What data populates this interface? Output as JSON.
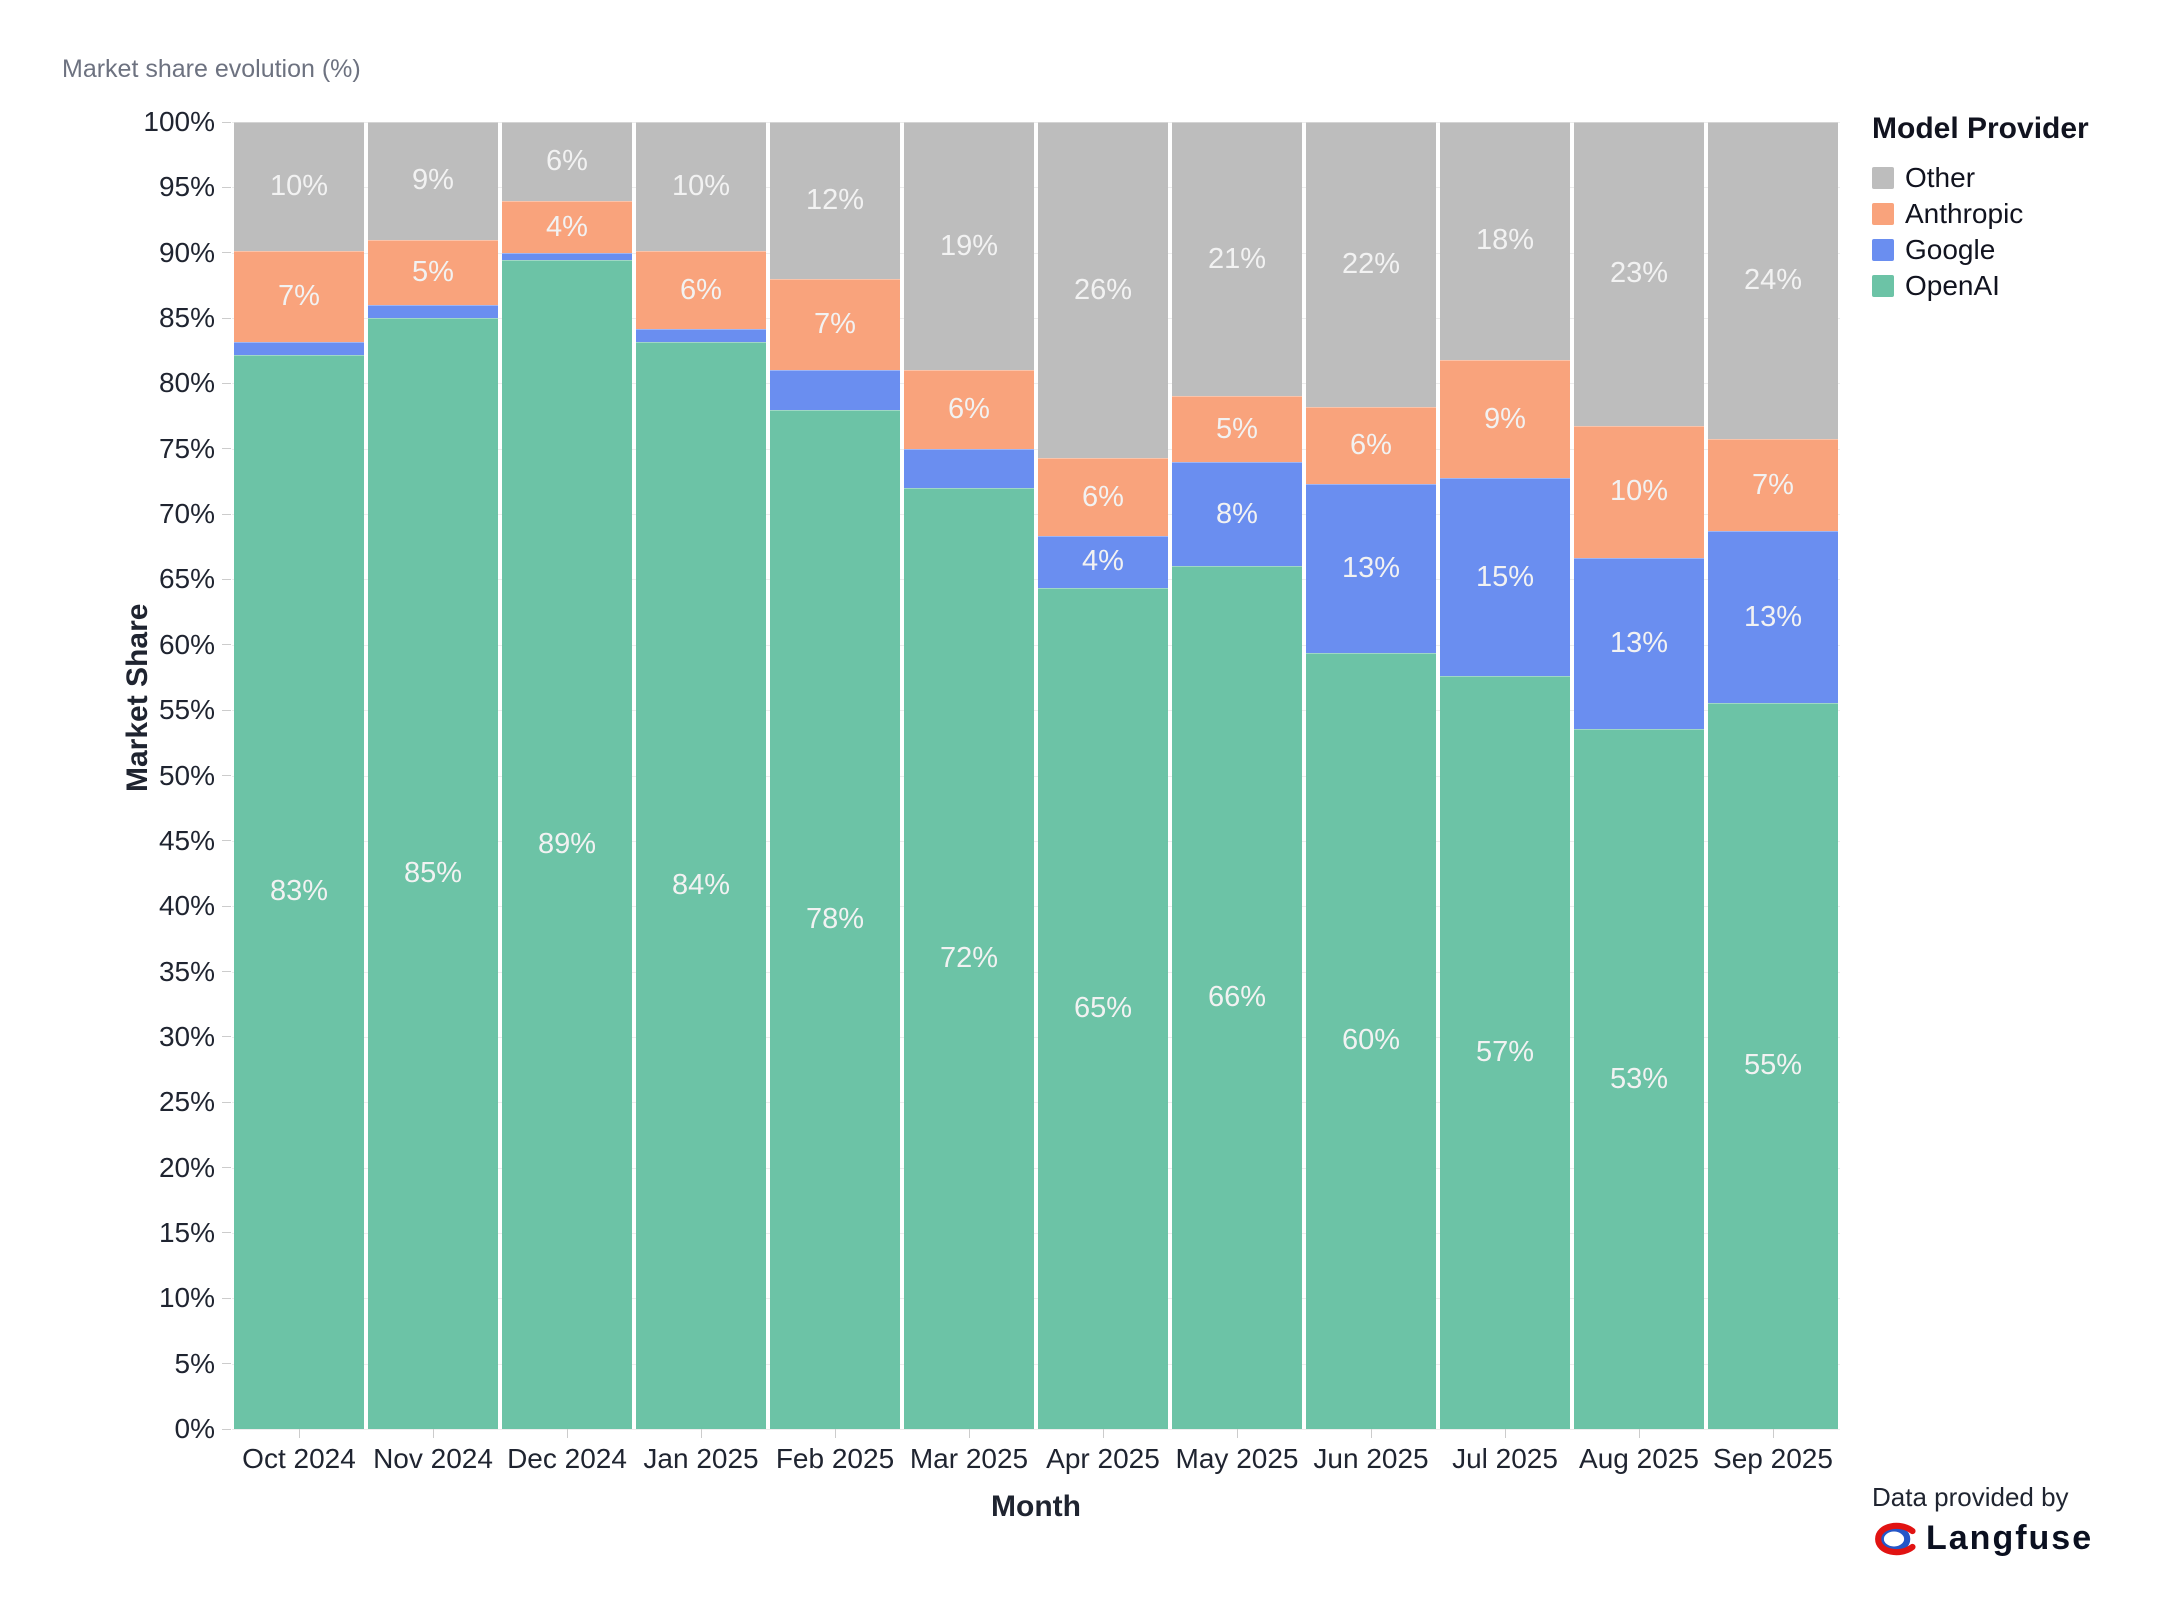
{
  "title": "Market share evolution (%)",
  "y_axis": {
    "label": "Market Share",
    "tick_values": [
      0,
      5,
      10,
      15,
      20,
      25,
      30,
      35,
      40,
      45,
      50,
      55,
      60,
      65,
      70,
      75,
      80,
      85,
      90,
      95,
      100
    ],
    "tick_suffix": "%"
  },
  "x_axis": {
    "label": "Month"
  },
  "legend": {
    "title": "Model Provider",
    "items": [
      {
        "label": "Other",
        "color": "#bdbdbd"
      },
      {
        "label": "Anthropic",
        "color": "#f9a37c"
      },
      {
        "label": "Google",
        "color": "#6a8ef0"
      },
      {
        "label": "OpenAI",
        "color": "#6cc3a6"
      }
    ]
  },
  "footer": {
    "provided_by": "Data provided by",
    "brand": "Langfuse",
    "logo_icon": "langfuse-knot-logo",
    "logo_colors": {
      "blue": "#2456c8",
      "red": "#e11312"
    }
  },
  "chart_data": {
    "type": "bar",
    "stacked": true,
    "title": "Market share evolution (%)",
    "xlabel": "Month",
    "ylabel": "Market Share",
    "ylim": [
      0,
      100
    ],
    "ytick_step": 5,
    "grid": true,
    "legend_position": "right",
    "stack_order_top_to_bottom": [
      "Other",
      "Anthropic",
      "Google",
      "OpenAI"
    ],
    "categories": [
      "Oct 2024",
      "Nov 2024",
      "Dec 2024",
      "Jan 2025",
      "Feb 2025",
      "Mar 2025",
      "Apr 2025",
      "May 2025",
      "Jun 2025",
      "Jul 2025",
      "Aug 2025",
      "Sep 2025"
    ],
    "series": [
      {
        "name": "OpenAI",
        "color": "#6cc3a6",
        "values": [
          83,
          85,
          89,
          84,
          78,
          72,
          65,
          66,
          60,
          57,
          53,
          55
        ],
        "labels": [
          "83%",
          "85%",
          "89%",
          "84%",
          "78%",
          "72%",
          "65%",
          "66%",
          "60%",
          "57%",
          "53%",
          "55%"
        ]
      },
      {
        "name": "Google",
        "color": "#6a8ef0",
        "values": [
          1,
          1,
          0.5,
          1,
          3,
          3,
          4,
          8,
          13,
          15,
          13,
          13
        ],
        "labels": [
          "",
          "",
          "",
          "",
          "",
          "",
          "4%",
          "8%",
          "13%",
          "15%",
          "13%",
          "13%"
        ]
      },
      {
        "name": "Anthropic",
        "color": "#f9a37c",
        "values": [
          7,
          5,
          4,
          6,
          7,
          6,
          6,
          5,
          6,
          9,
          10,
          7
        ],
        "labels": [
          "7%",
          "5%",
          "4%",
          "6%",
          "7%",
          "6%",
          "6%",
          "5%",
          "6%",
          "9%",
          "10%",
          "7%"
        ]
      },
      {
        "name": "Other",
        "color": "#bdbdbd",
        "values": [
          10,
          9,
          6,
          10,
          12,
          19,
          26,
          21,
          22,
          18,
          23,
          24
        ],
        "labels": [
          "10%",
          "9%",
          "6%",
          "10%",
          "12%",
          "19%",
          "26%",
          "21%",
          "22%",
          "18%",
          "23%",
          "24%"
        ]
      }
    ]
  }
}
